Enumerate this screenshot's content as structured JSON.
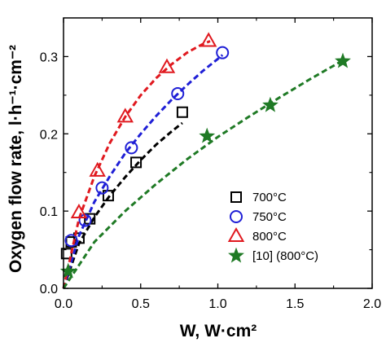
{
  "chart_data": {
    "type": "scatter",
    "xlabel": "W, W·cm²",
    "ylabel": "Oxygen flow rate, l·h⁻¹·cm⁻²",
    "xlim": [
      0,
      2.0
    ],
    "ylim": [
      0,
      0.35
    ],
    "xticks": [
      0.0,
      0.5,
      1.0,
      1.5,
      2.0
    ],
    "yticks": [
      0.0,
      0.1,
      0.2,
      0.3
    ],
    "xtick_labels": [
      "0.0",
      "0.5",
      "1.0",
      "1.5",
      "2.0"
    ],
    "ytick_labels": [
      "0.0",
      "0.1",
      "0.2",
      "0.3"
    ],
    "grid": false,
    "legend_position": "lower-right",
    "series": [
      {
        "name": "700°C",
        "marker": "square",
        "color": "#000000",
        "line_color": "#000000",
        "x": [
          0.02,
          0.05,
          0.1,
          0.17,
          0.29,
          0.47,
          0.77
        ],
        "y": [
          0.045,
          0.06,
          0.065,
          0.09,
          0.12,
          0.163,
          0.228
        ],
        "fit_x": [
          0.0,
          0.1,
          0.2,
          0.3,
          0.4,
          0.5,
          0.6,
          0.7,
          0.77
        ],
        "fit_y": [
          0.0,
          0.058,
          0.092,
          0.12,
          0.144,
          0.166,
          0.186,
          0.203,
          0.214
        ]
      },
      {
        "name": "750°C",
        "marker": "circle",
        "color": "#1f1fd6",
        "line_color": "#1f1fd6",
        "x": [
          0.05,
          0.14,
          0.25,
          0.44,
          0.74,
          1.03
        ],
        "y": [
          0.062,
          0.088,
          0.13,
          0.182,
          0.252,
          0.305
        ],
        "fit_x": [
          0.0,
          0.1,
          0.2,
          0.3,
          0.4,
          0.5,
          0.6,
          0.7,
          0.8,
          0.9,
          1.0,
          1.03
        ],
        "fit_y": [
          0.0,
          0.068,
          0.112,
          0.145,
          0.175,
          0.2,
          0.223,
          0.244,
          0.263,
          0.281,
          0.297,
          0.302
        ]
      },
      {
        "name": "800°C",
        "marker": "triangle",
        "color": "#e0191f",
        "line_color": "#e0191f",
        "x": [
          0.1,
          0.22,
          0.4,
          0.67,
          0.94
        ],
        "y": [
          0.098,
          0.152,
          0.222,
          0.286,
          0.32
        ],
        "fit_x": [
          0.0,
          0.1,
          0.2,
          0.3,
          0.4,
          0.5,
          0.6,
          0.7,
          0.8,
          0.9,
          0.95
        ],
        "fit_y": [
          0.0,
          0.09,
          0.145,
          0.188,
          0.222,
          0.25,
          0.272,
          0.29,
          0.305,
          0.316,
          0.32
        ]
      },
      {
        "name": "[10] (800°C)",
        "marker": "star",
        "color": "#1f7a25",
        "line_color": "#1f7a25",
        "x": [
          0.03,
          0.93,
          1.34,
          1.81
        ],
        "y": [
          0.022,
          0.197,
          0.237,
          0.294
        ],
        "fit_x": [
          0.0,
          0.2,
          0.4,
          0.6,
          0.8,
          1.0,
          1.2,
          1.4,
          1.6,
          1.81
        ],
        "fit_y": [
          0.0,
          0.06,
          0.1,
          0.135,
          0.167,
          0.196,
          0.222,
          0.247,
          0.271,
          0.295
        ]
      }
    ]
  }
}
